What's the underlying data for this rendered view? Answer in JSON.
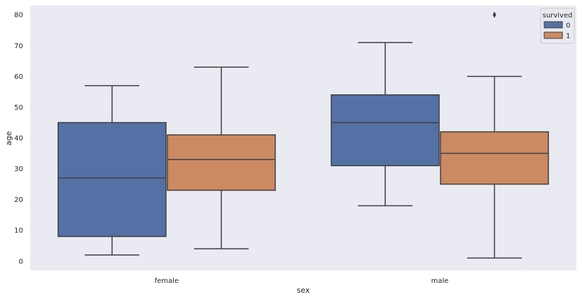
{
  "chart_data": {
    "type": "boxplot",
    "xlabel": "sex",
    "ylabel": "age",
    "categories": [
      "female",
      "male"
    ],
    "hue_title": "survived",
    "ylim": [
      -3,
      83
    ],
    "yticks": [
      0,
      10,
      20,
      30,
      40,
      50,
      60,
      70,
      80
    ],
    "grid": false,
    "legend_position": "top-right",
    "series": [
      {
        "name": "0",
        "color": "#5471a5",
        "boxes": [
          {
            "category": "female",
            "whisker_low": 2,
            "q1": 8,
            "median": 27,
            "q3": 45,
            "whisker_high": 57,
            "outliers": []
          },
          {
            "category": "male",
            "whisker_low": 18,
            "q1": 31,
            "median": 45,
            "q3": 54,
            "whisker_high": 71,
            "outliers": []
          }
        ]
      },
      {
        "name": "1",
        "color": "#cc8a63",
        "boxes": [
          {
            "category": "female",
            "whisker_low": 4,
            "q1": 23,
            "median": 33,
            "q3": 41,
            "whisker_high": 63,
            "outliers": []
          },
          {
            "category": "male",
            "whisker_low": 1,
            "q1": 25,
            "median": 35,
            "q3": 42,
            "whisker_high": 60,
            "outliers": [
              80
            ]
          }
        ]
      }
    ]
  }
}
